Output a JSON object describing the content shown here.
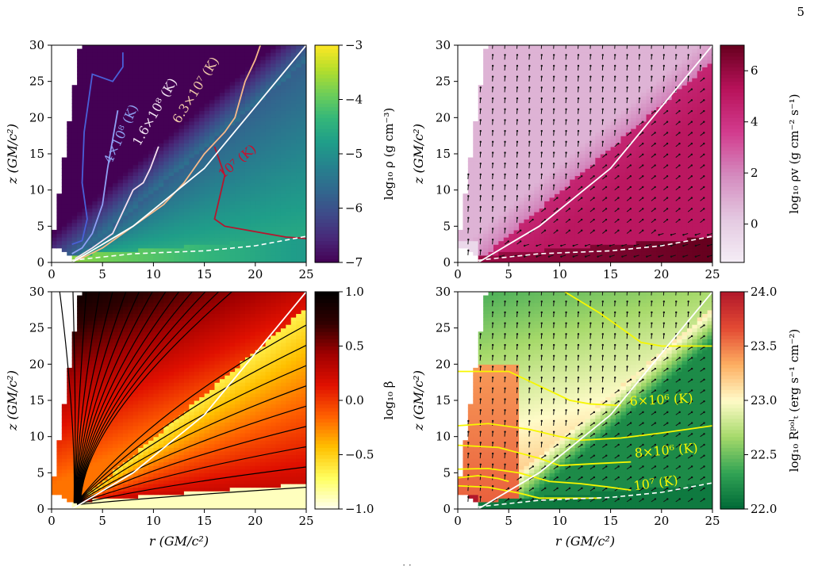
{
  "page_number": "5",
  "footer_text": "· ·",
  "colors": {
    "viridis": [
      "#440154",
      "#482878",
      "#3e4a89",
      "#31688e",
      "#26828e",
      "#1f9e89",
      "#35b779",
      "#6ece58",
      "#b5de2b",
      "#fde725"
    ],
    "pubu_purple": [
      "#f5eef6",
      "#e4c9e1",
      "#d48bbf",
      "#d23c8e",
      "#b8125a",
      "#67001f"
    ],
    "hot": [
      "#fffff0",
      "#ffff60",
      "#ffc000",
      "#ff6000",
      "#e01000",
      "#a00000",
      "#300000",
      "#000000"
    ],
    "rdylgn": [
      "#006837",
      "#31a354",
      "#a6d96a",
      "#fffbc8",
      "#fdae61",
      "#e34a33",
      "#b2182b"
    ],
    "white_line": "#ffffff",
    "yellow_contour": "#f7f700"
  },
  "chart_data": [
    {
      "type": "heatmap",
      "panel": "top-left",
      "field": "density",
      "xlabel": "",
      "ylabel": "z   (GM/c²)",
      "xlim": [
        0,
        25
      ],
      "ylim": [
        0,
        30
      ],
      "xticks": [
        "0",
        "5",
        "10",
        "15",
        "20",
        "25"
      ],
      "yticks": [
        "0",
        "5",
        "10",
        "15",
        "20",
        "25",
        "30"
      ],
      "colorbar": {
        "label": "log₁₀ ρ   (g cm⁻³)",
        "range": [
          -7,
          -3
        ],
        "ticks": [
          "−7",
          "−6",
          "−5",
          "−4",
          "−3"
        ],
        "colormap": "viridis"
      },
      "contour_labels": [
        {
          "text": "4×10⁸ (K)",
          "color": "#8ea0f0",
          "at": [
            7.2,
            17.5
          ],
          "angle": -65
        },
        {
          "text": "1.6×10⁸ (K)",
          "color": "#f3e4f3",
          "at": [
            10.5,
            20.5
          ],
          "angle": -60
        },
        {
          "text": "6.3×10⁷ (K)",
          "color": "#f0c8a8",
          "at": [
            14.5,
            23.5
          ],
          "angle": -58
        },
        {
          "text": "10⁷ (K)",
          "color": "#c8102e",
          "at": [
            18.5,
            13.5
          ],
          "angle": -40
        }
      ],
      "contours": [
        {
          "color": "#4a60d8",
          "points": [
            [
              2,
              2.5
            ],
            [
              3,
              3
            ],
            [
              3.5,
              6
            ],
            [
              3,
              11
            ],
            [
              3.2,
              18
            ],
            [
              4,
              26
            ],
            [
              6,
              25
            ],
            [
              7,
              27
            ],
            [
              7,
              29
            ]
          ]
        },
        {
          "color": "#8fa0f5",
          "points": [
            [
              2,
              1.2
            ],
            [
              3,
              2
            ],
            [
              4,
              4
            ],
            [
              5,
              8
            ],
            [
              5.5,
              13
            ],
            [
              6.5,
              21
            ]
          ]
        },
        {
          "color": "#f6e0f0",
          "points": [
            [
              2.3,
              0.5
            ],
            [
              4,
              2
            ],
            [
              6,
              4
            ],
            [
              7,
              7
            ],
            [
              8,
              10
            ],
            [
              9,
              11
            ],
            [
              9.7,
              13
            ],
            [
              10.5,
              16
            ]
          ]
        },
        {
          "color": "#f7b98a",
          "points": [
            [
              2.5,
              0.3
            ],
            [
              5,
              2
            ],
            [
              8,
              5
            ],
            [
              11,
              8
            ],
            [
              13,
              11
            ],
            [
              15,
              15
            ],
            [
              17,
              18
            ],
            [
              18,
              20
            ],
            [
              19,
              25
            ],
            [
              20,
              28
            ],
            [
              20.5,
              30
            ]
          ]
        },
        {
          "color": "#b5162e",
          "points": [
            [
              16,
              16
            ],
            [
              17,
              12
            ],
            [
              16.5,
              9
            ],
            [
              16,
              6
            ],
            [
              17,
              5
            ],
            [
              19,
              4.5
            ],
            [
              21,
              4
            ],
            [
              23,
              3.5
            ],
            [
              25,
              3.3
            ]
          ]
        }
      ],
      "white_solid": [
        [
          2,
          0
        ],
        [
          8,
          5
        ],
        [
          15,
          13
        ],
        [
          25,
          30
        ]
      ],
      "white_dashed": [
        [
          2,
          0.3
        ],
        [
          8,
          1.2
        ],
        [
          15,
          1.6
        ],
        [
          20,
          2.3
        ],
        [
          25,
          3.6
        ]
      ]
    },
    {
      "type": "heatmap",
      "panel": "top-right",
      "field": "mass flux",
      "xlabel": "",
      "ylabel": "z   (GM/c²)",
      "xlim": [
        0,
        25
      ],
      "ylim": [
        0,
        30
      ],
      "xticks": [
        "0",
        "5",
        "10",
        "15",
        "20",
        "25"
      ],
      "yticks": [
        "0",
        "5",
        "10",
        "15",
        "20",
        "25",
        "30"
      ],
      "colorbar": {
        "label": "log₁₀ ρv   (g cm⁻² s⁻¹)",
        "range": [
          -1.5,
          7
        ],
        "ticks": [
          "0",
          "2",
          "4",
          "6"
        ],
        "colormap": "pubu_purple"
      },
      "has_vectors": true,
      "white_solid": [
        [
          2,
          0
        ],
        [
          8,
          5
        ],
        [
          15,
          13
        ],
        [
          25,
          30
        ]
      ],
      "white_dashed": [
        [
          2,
          0.3
        ],
        [
          8,
          1.2
        ],
        [
          15,
          1.6
        ],
        [
          20,
          2.3
        ],
        [
          25,
          3.6
        ]
      ]
    },
    {
      "type": "heatmap",
      "panel": "bottom-left",
      "field": "plasma beta",
      "xlabel": "r   (GM/c²)",
      "ylabel": "z   (GM/c²)",
      "xlim": [
        0,
        25
      ],
      "ylim": [
        0,
        30
      ],
      "xticks": [
        "0",
        "5",
        "10",
        "15",
        "20",
        "25"
      ],
      "yticks": [
        "0",
        "5",
        "10",
        "15",
        "20",
        "25",
        "30"
      ],
      "colorbar": {
        "label": "log₁₀ β",
        "range": [
          -1,
          1
        ],
        "ticks": [
          "−1.0",
          "−0.5",
          "0.0",
          "0.5",
          "1.0"
        ],
        "colormap": "hot"
      },
      "has_field_lines": true,
      "white_solid": [
        [
          2,
          0
        ],
        [
          8,
          5
        ],
        [
          15,
          13
        ],
        [
          25,
          30
        ]
      ]
    },
    {
      "type": "heatmap",
      "panel": "bottom-right",
      "field": "radiation",
      "xlabel": "r   (GM/c²)",
      "ylabel": "z   (GM/c²)",
      "xlim": [
        0,
        25
      ],
      "ylim": [
        0,
        30
      ],
      "xticks": [
        "0",
        "5",
        "10",
        "15",
        "20",
        "25"
      ],
      "yticks": [
        "0",
        "5",
        "10",
        "15",
        "20",
        "25",
        "30"
      ],
      "colorbar": {
        "label": "log₁₀ Rᵖᵒˡₜ   (erg s⁻¹ cm⁻²)",
        "range": [
          22,
          24
        ],
        "ticks": [
          "22.0",
          "22.5",
          "23.0",
          "23.5",
          "24.0"
        ],
        "colormap": "rdylgn"
      },
      "has_vectors": true,
      "contour_labels": [
        {
          "text": "6×10⁶ (K)",
          "color": "#f7f700",
          "at": [
            20,
            14.5
          ],
          "angle": -3
        },
        {
          "text": "8×10⁶ (K)",
          "color": "#f7f700",
          "at": [
            20.5,
            7.5
          ],
          "angle": -5
        },
        {
          "text": "10⁷ (K)",
          "color": "#f7f700",
          "at": [
            19.5,
            3
          ],
          "angle": -8
        }
      ],
      "contours": [
        {
          "color": "#f7f700",
          "points": [
            [
              10.5,
              30
            ],
            [
              14,
              27
            ],
            [
              18,
              23
            ],
            [
              20,
              22.5
            ],
            [
              25,
              22.5
            ]
          ]
        },
        {
          "color": "#f7f700",
          "points": [
            [
              0,
              19
            ],
            [
              5,
              19
            ],
            [
              8,
              17
            ],
            [
              11,
              15
            ],
            [
              13,
              14.5
            ],
            [
              16,
              14.3
            ]
          ]
        },
        {
          "color": "#f7f700",
          "points": [
            [
              0,
              11.5
            ],
            [
              3,
              11.8
            ],
            [
              7,
              11
            ],
            [
              10,
              10
            ],
            [
              12,
              9.5
            ],
            [
              16,
              9.8
            ],
            [
              20,
              10.5
            ],
            [
              25,
              11.5
            ]
          ]
        },
        {
          "color": "#f7f700",
          "points": [
            [
              0,
              8.8
            ],
            [
              4,
              8.5
            ],
            [
              8,
              7
            ],
            [
              10,
              6
            ],
            [
              14,
              6.3
            ],
            [
              17,
              6.5
            ]
          ]
        },
        {
          "color": "#f7f700",
          "points": [
            [
              0,
              5.5
            ],
            [
              3,
              5.6
            ],
            [
              6,
              5
            ],
            [
              9,
              3.8
            ],
            [
              12,
              3.5
            ],
            [
              15,
              3
            ],
            [
              17,
              2.6
            ]
          ]
        },
        {
          "color": "#f7f700",
          "points": [
            [
              0,
              3.2
            ],
            [
              3,
              3
            ],
            [
              6,
              2.2
            ],
            [
              8,
              1.5
            ],
            [
              10,
              1.5
            ],
            [
              14,
              1.5
            ]
          ]
        },
        {
          "color": "#f7f700",
          "points": [
            [
              0,
              4.3
            ],
            [
              2,
              4.6
            ],
            [
              4,
              4.2
            ],
            [
              5,
              3.8
            ]
          ]
        }
      ],
      "white_solid": [
        [
          2,
          0
        ],
        [
          8,
          5
        ],
        [
          15,
          13
        ],
        [
          25,
          30
        ]
      ],
      "white_dashed": [
        [
          2,
          0.3
        ],
        [
          8,
          1.2
        ],
        [
          15,
          1.6
        ],
        [
          20,
          2.3
        ],
        [
          25,
          3.6
        ]
      ]
    }
  ]
}
